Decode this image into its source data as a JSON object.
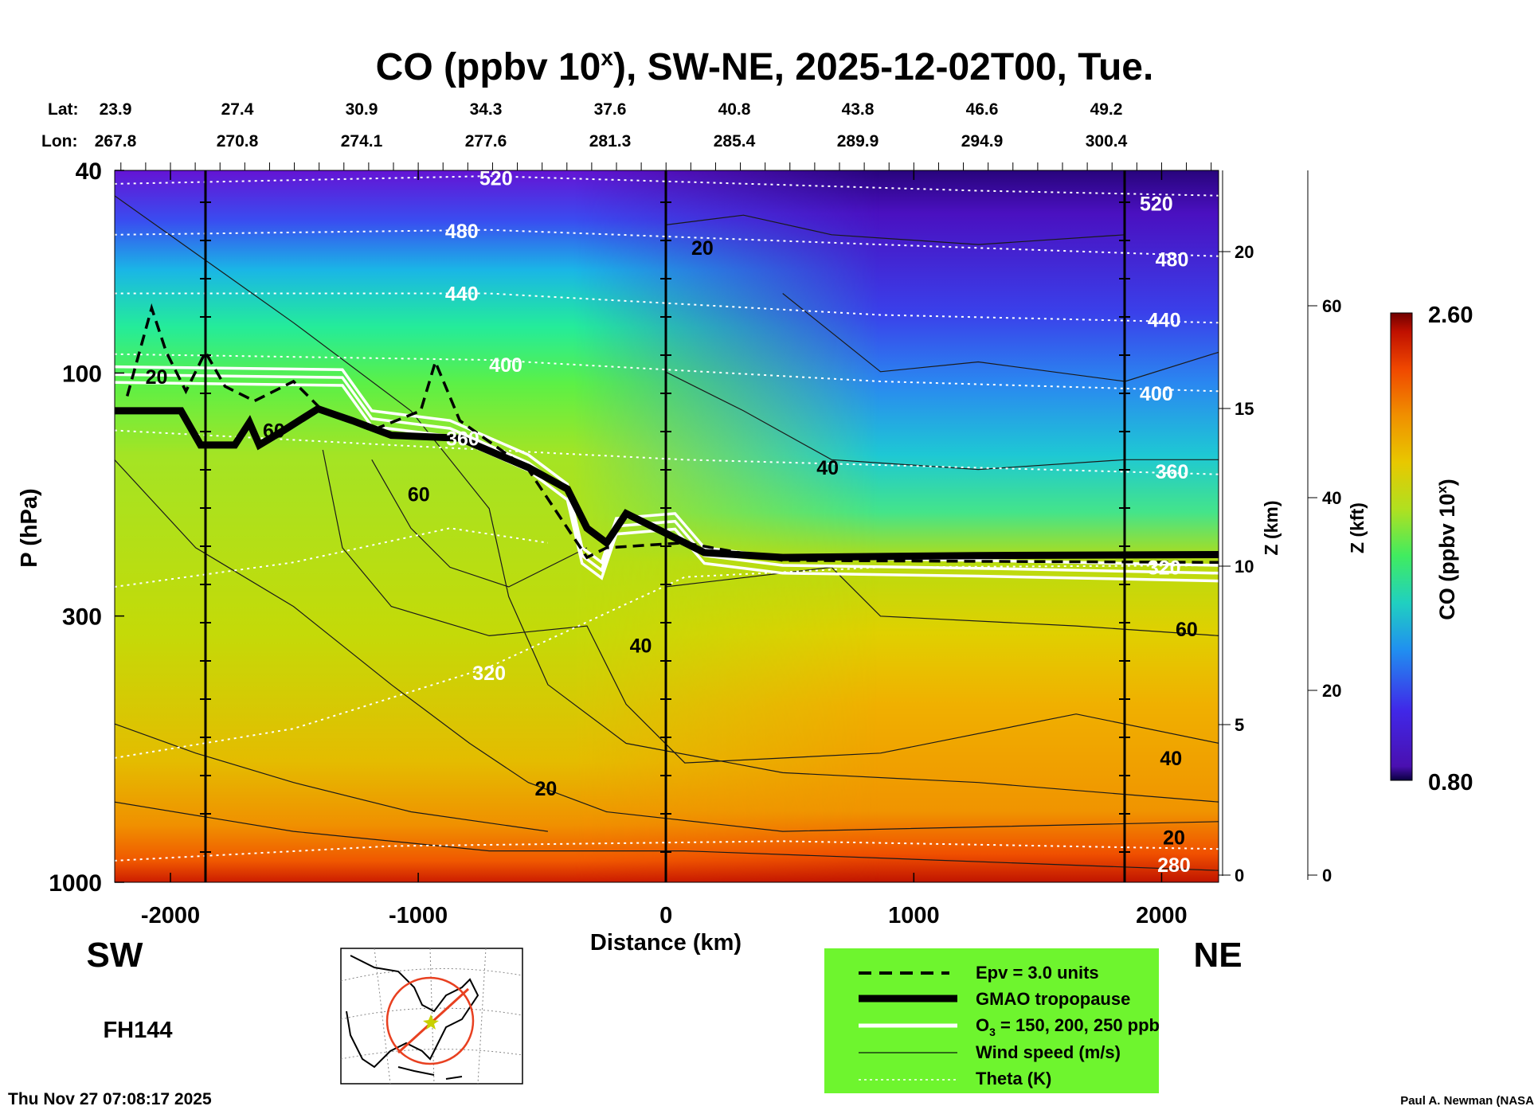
{
  "chart_data": {
    "type": "heatmap",
    "subtype": "vertical cross-section contour",
    "title": "CO (ppbv 10",
    "title_sup": "x",
    "title_rest": "), SW-NE, 2025-12-02T00, Tue.",
    "lat_label": "Lat:",
    "lon_label": "Lon:",
    "lat": [
      "23.9",
      "27.4",
      "30.9",
      "34.3",
      "37.6",
      "40.8",
      "43.8",
      "46.6",
      "49.2"
    ],
    "lon": [
      "267.8",
      "270.8",
      "274.1",
      "277.6",
      "281.3",
      "285.4",
      "289.9",
      "294.9",
      "300.4"
    ],
    "xlabel": "Distance (km)",
    "xticks": [
      "-2000",
      "-1000",
      "0",
      "1000",
      "2000"
    ],
    "xtick_values": [
      -2000,
      -1000,
      0,
      1000,
      2000
    ],
    "xlim": [
      -2225,
      2230
    ],
    "ylabel": "P (hPa)",
    "yticks": [
      "40",
      "100",
      "300",
      "1000"
    ],
    "ytick_values": [
      40,
      100,
      300,
      1000
    ],
    "ylim": [
      1000,
      40
    ],
    "yscale": "log",
    "z_km_label": "Z (km)",
    "z_km_ticks": [
      "20",
      "15",
      "10",
      "5",
      "0"
    ],
    "z_kft_label": "Z (kft)",
    "z_kft_ticks": [
      "60",
      "40",
      "20",
      "0"
    ],
    "colorbar": {
      "label": "CO (ppbv 10",
      "label_sup": "x",
      "label_end": ")",
      "max": "2.60",
      "min": "0.80"
    },
    "theta_labels": [
      "520",
      "480",
      "440",
      "400",
      "360",
      "320",
      "520",
      "480",
      "440",
      "400",
      "360",
      "320",
      "280"
    ],
    "wind_labels": [
      "20",
      "20",
      "20",
      "20",
      "40",
      "40",
      "40",
      "60",
      "60",
      "60"
    ],
    "left_end": "SW",
    "right_end": "NE",
    "forecast_hour": "FH144",
    "legend": [
      {
        "label": "Epv = 3.0 units",
        "style": "dashed-black"
      },
      {
        "label": "GMAO tropopause",
        "style": "thick-black"
      },
      {
        "label": "O",
        "sub": "3",
        "rest": " = 150, 200, 250 ppb",
        "style": "white"
      },
      {
        "label": "Wind speed (m/s)",
        "style": "thin-black"
      },
      {
        "label": "Theta (K)",
        "style": "dotted-white"
      }
    ],
    "legend_bg": "#6ef52e"
  },
  "footer": {
    "timestamp": "Thu Nov 27 07:08:17 2025",
    "credit": "Paul A. Newman (NASA"
  }
}
